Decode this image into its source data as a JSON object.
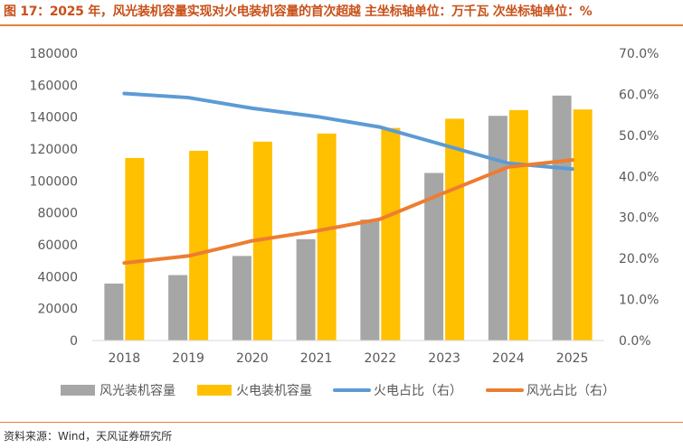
{
  "header": {
    "title": "图 17：2025 年，风光装机容量实现对火电装机容量的首次超越  主坐标轴单位：万千瓦 次坐标轴单位：%"
  },
  "footer": {
    "source": "资料来源：Wind，天风证券研究所"
  },
  "colors": {
    "wind_solar_bar": "#a6a6a6",
    "thermal_bar": "#ffc000",
    "thermal_share_line": "#5b9bd5",
    "wind_solar_share_line": "#ed7d31",
    "title": "#c8511a",
    "rule": "#e97f3a"
  },
  "chart_data": {
    "type": "bar",
    "categories": [
      "2018",
      "2019",
      "2020",
      "2021",
      "2022",
      "2023",
      "2024",
      "2025"
    ],
    "ylim": [
      0,
      180000
    ],
    "yticks": [
      "0",
      "20000",
      "40000",
      "60000",
      "80000",
      "100000",
      "120000",
      "140000",
      "160000",
      "180000"
    ],
    "y2lim": [
      0,
      70
    ],
    "y2ticks": [
      "0.0%",
      "10.0%",
      "20.0%",
      "30.0%",
      "40.0%",
      "50.0%",
      "60.0%",
      "70.0%"
    ],
    "grid": false,
    "legend_position": "bottom",
    "series": [
      {
        "name": "风光装机容量",
        "kind": "bar",
        "axis": "left",
        "color": "#a6a6a6",
        "values": [
          35700,
          41000,
          53000,
          63500,
          75800,
          105000,
          140800,
          153500
        ]
      },
      {
        "name": "火电装机容量",
        "kind": "bar",
        "axis": "left",
        "color": "#ffc000",
        "values": [
          114400,
          118900,
          124600,
          129700,
          133200,
          139000,
          144400,
          144800
        ]
      },
      {
        "name": "火电占比（右）",
        "kind": "line",
        "axis": "right",
        "color": "#5b9bd5",
        "values": [
          60.2,
          59.2,
          56.6,
          54.6,
          52.0,
          47.6,
          43.2,
          41.8
        ]
      },
      {
        "name": "风光占比（右）",
        "kind": "line",
        "axis": "right",
        "color": "#ed7d31",
        "values": [
          18.9,
          20.6,
          24.3,
          26.7,
          29.6,
          36.0,
          42.3,
          44.0
        ]
      }
    ]
  }
}
